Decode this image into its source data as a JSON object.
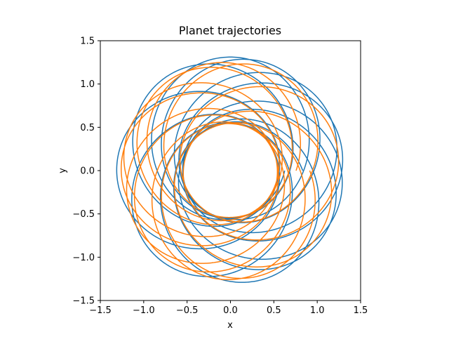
{
  "chart_data": {
    "type": "line",
    "title": "Planet trajectories",
    "xlabel": "x",
    "ylabel": "y",
    "xlim": [
      -1.5,
      1.5
    ],
    "ylim": [
      -1.5,
      1.5
    ],
    "xticks": [
      -1.5,
      -1.0,
      -0.5,
      0.0,
      0.5,
      1.0,
      1.5
    ],
    "yticks": [
      -1.5,
      -1.0,
      -0.5,
      0.0,
      0.5,
      1.0,
      1.5
    ],
    "xtick_labels": [
      "−1.5",
      "−1.0",
      "−0.5",
      "0.0",
      "0.5",
      "1.0",
      "1.5"
    ],
    "ytick_labels": [
      "−1.5",
      "−1.0",
      "−0.5",
      "0.0",
      "0.5",
      "1.0",
      "1.5"
    ],
    "grid": false,
    "aspect": "equal",
    "series": [
      {
        "color": "#1f77b4",
        "orbit": {
          "semi_major": 0.93,
          "eccentricity": 0.41,
          "phase_deg": 100,
          "precession_rate": 0.1309,
          "turns": 12
        }
      },
      {
        "color": "#ff7f0e",
        "orbit": {
          "semi_major": 0.9,
          "eccentricity": 0.4,
          "phase_deg": 270,
          "precession_rate": 0.1309,
          "turns": 12
        }
      }
    ]
  }
}
